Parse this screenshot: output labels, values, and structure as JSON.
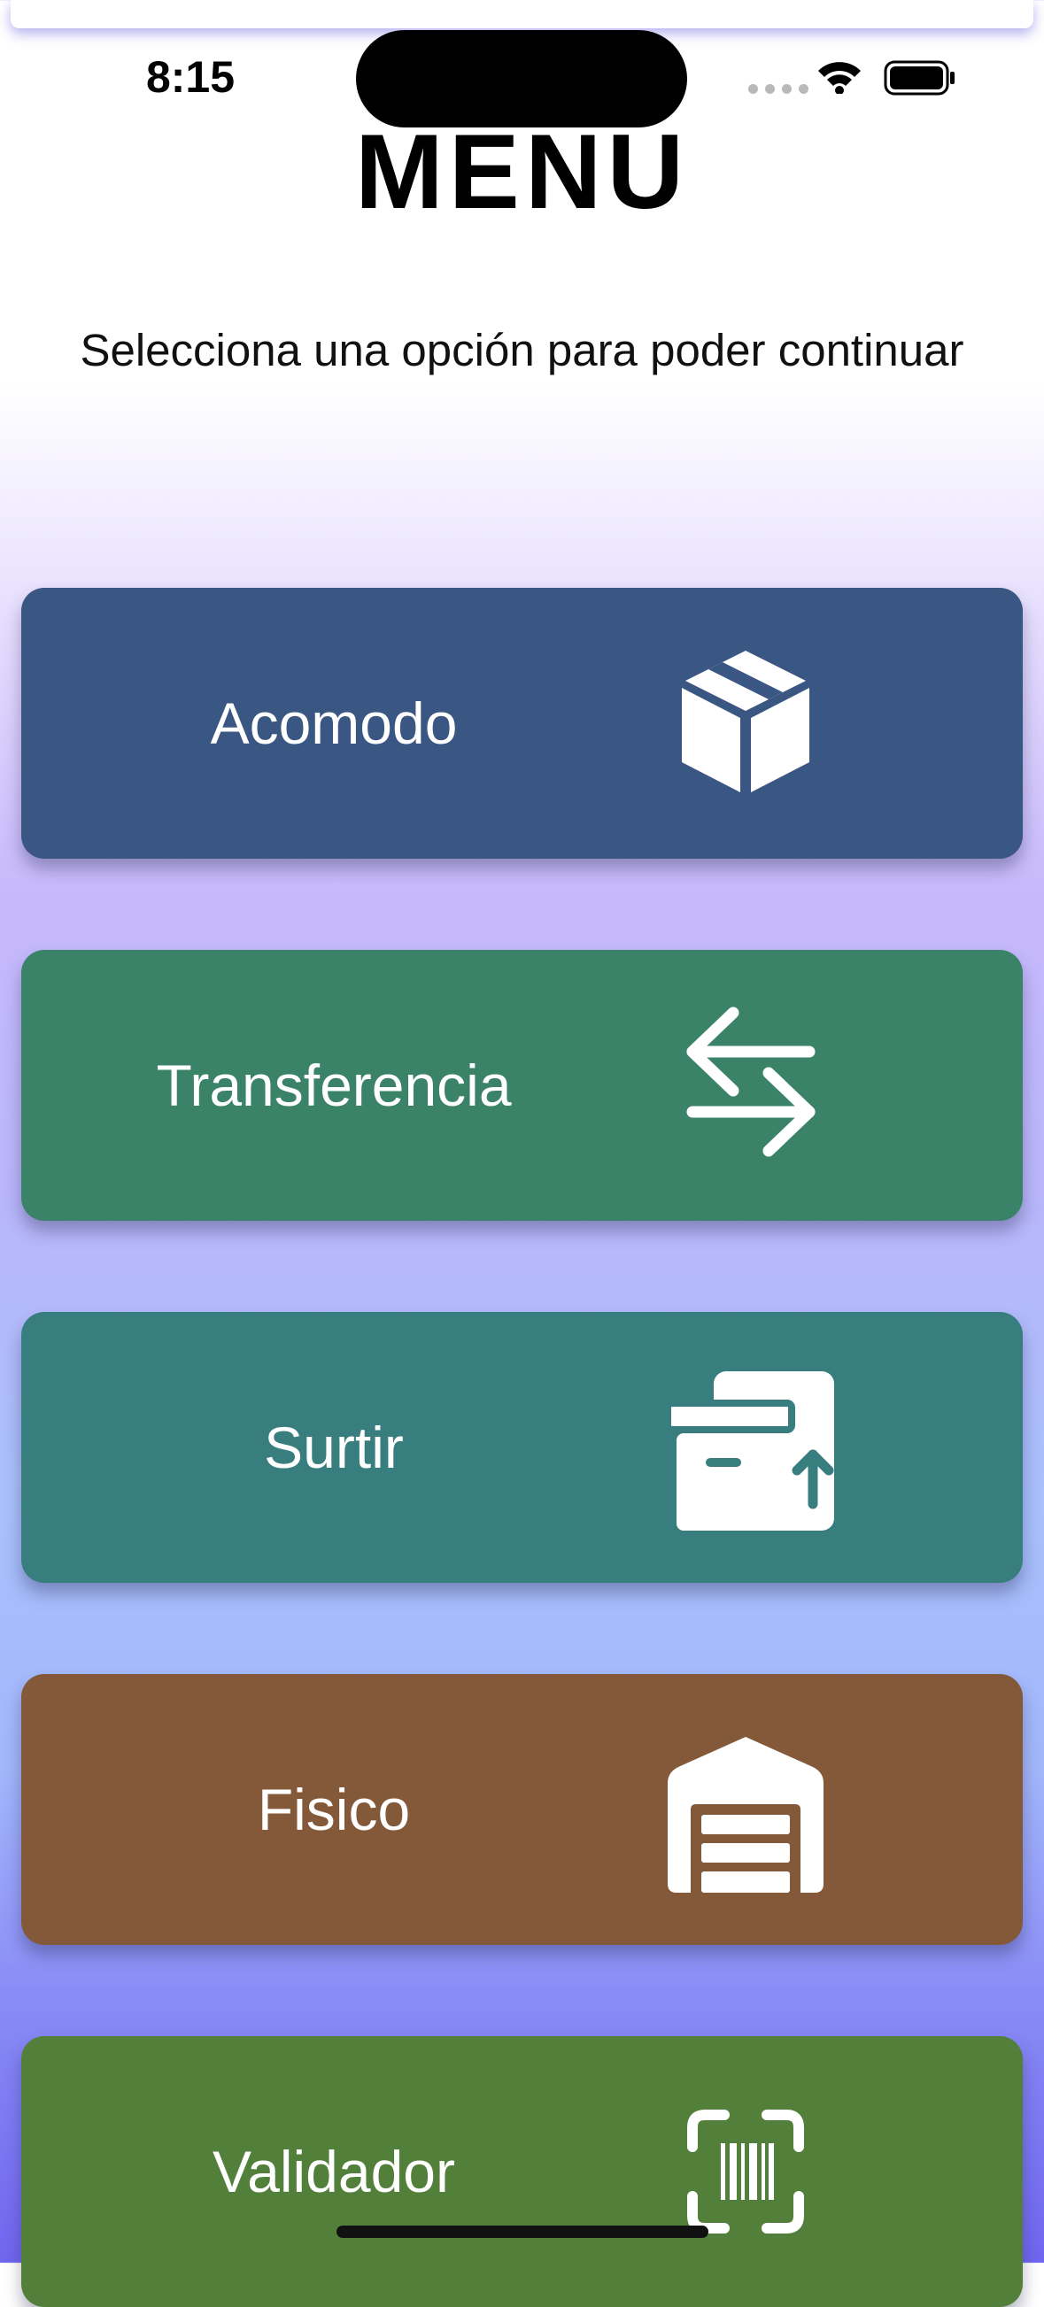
{
  "status_bar": {
    "time": "8:15"
  },
  "header": {
    "title": "MENU",
    "subtitle": "Selecciona una opción para poder continuar"
  },
  "menu": {
    "items": [
      {
        "label": "Acomodo",
        "icon": "package-box-icon",
        "color": "#3a5682"
      },
      {
        "label": "Transferencia",
        "icon": "transfer-arrows-icon",
        "color": "#3a8268"
      },
      {
        "label": "Surtir",
        "icon": "boxes-upload-icon",
        "color": "#397e7f"
      },
      {
        "label": "Fisico",
        "icon": "warehouse-icon",
        "color": "#84593a"
      },
      {
        "label": "Validador",
        "icon": "barcode-scan-icon",
        "color": "#52803a"
      }
    ]
  },
  "colors": {
    "background_top": "#ffffff",
    "background_mid": "#c7b9fb",
    "background_bottom": "#6f66ef"
  }
}
